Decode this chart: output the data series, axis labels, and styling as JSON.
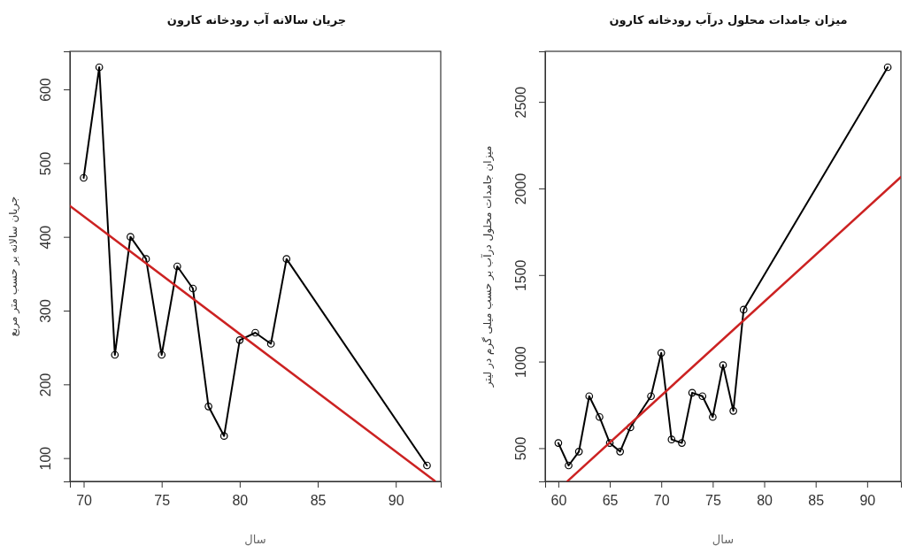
{
  "chart_data": [
    {
      "type": "line",
      "title": "جریان سالانه آب رودخانه کارون",
      "xlabel": "سال",
      "ylabel": "جریان سالانه بر حسب متر مربع",
      "marker": "circle",
      "xlim": [
        69.12,
        92.88
      ],
      "xticks": [
        70,
        75,
        80,
        85,
        90
      ],
      "ylim": [
        68.4,
        651.6
      ],
      "yticks": [
        100,
        200,
        300,
        400,
        500,
        600
      ],
      "series": [
        {
          "color": "#000000",
          "x": [
            70,
            71,
            72,
            73,
            74,
            75,
            76,
            77,
            78,
            79,
            80,
            81,
            82,
            83,
            92
          ],
          "values": [
            480,
            630,
            240,
            400,
            370,
            240,
            360,
            330,
            170,
            130,
            260,
            270,
            255,
            370,
            90
          ]
        },
        {
          "type": "line",
          "marker": "none",
          "color": "#cc2222",
          "x": [
            69.12,
            92.5
          ],
          "values": [
            442,
            69
          ]
        }
      ]
    },
    {
      "type": "line",
      "title": "میزان جامدات محلول درآب رودخانه کارون",
      "xlabel": "سال",
      "ylabel": "میزان جامدات محلول درآب بر حسب میلی گرم در لیتر",
      "marker": "circle",
      "xlim": [
        58.72,
        93.28
      ],
      "xticks": [
        60,
        65,
        70,
        75,
        80,
        85,
        90
      ],
      "ylim": [
        308,
        2792
      ],
      "yticks": [
        500,
        1000,
        1500,
        2000,
        2500
      ],
      "series": [
        {
          "color": "#000000",
          "x": [
            60,
            61,
            62,
            63,
            64,
            65,
            66,
            67,
            69,
            70,
            71,
            72,
            73,
            74,
            75,
            76,
            77,
            78,
            92
          ],
          "values": [
            530,
            400,
            480,
            800,
            680,
            530,
            480,
            620,
            800,
            1050,
            550,
            530,
            820,
            800,
            680,
            980,
            715,
            1300,
            2700
          ]
        },
        {
          "type": "line",
          "marker": "none",
          "color": "#cc2222",
          "x": [
            60.9,
            93.28
          ],
          "values": [
            310,
            2066
          ]
        }
      ]
    }
  ]
}
